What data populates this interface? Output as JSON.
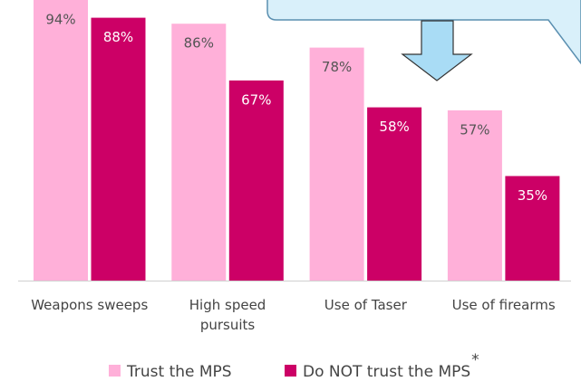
{
  "chart_data": {
    "type": "bar",
    "categories": [
      "Weapons sweeps",
      "High speed\npursuits",
      "Use of Taser",
      "Use of firearms"
    ],
    "series": [
      {
        "name": "Trust the MPS",
        "color": "#ffb0d9",
        "values": [
          94,
          86,
          78,
          57
        ],
        "value_labels": [
          "94%",
          "86%",
          "78%",
          "57%"
        ]
      },
      {
        "name": "Do NOT trust the MPS",
        "footnote": "*",
        "color": "#cc0066",
        "values": [
          88,
          67,
          58,
          35
        ],
        "value_labels": [
          "88%",
          "67%",
          "58%",
          "35%"
        ]
      }
    ],
    "ylim": [
      0,
      100
    ],
    "legend": "bottom"
  }
}
